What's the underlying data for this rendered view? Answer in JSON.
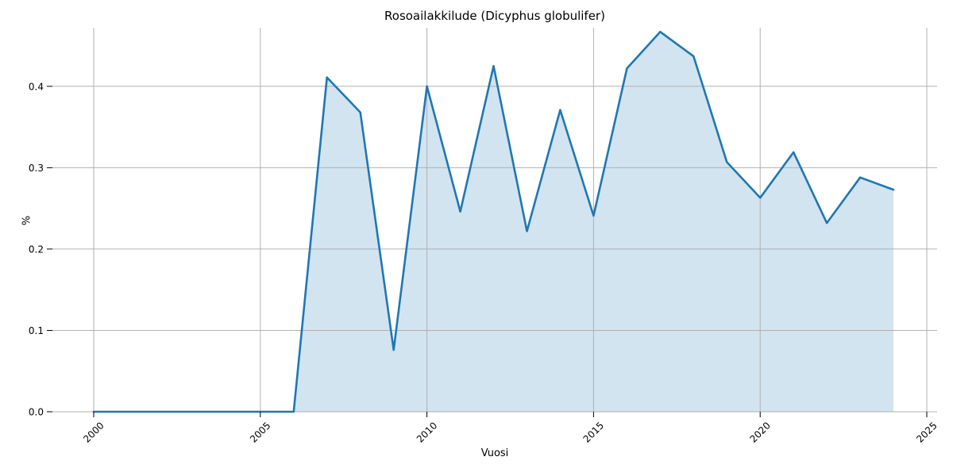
{
  "title": "Rosoailakkilude (Dicyphus globulifer)",
  "chart_data": {
    "type": "area",
    "title": "Rosoailakkilude (Dicyphus globulifer)",
    "xlabel": "Vuosi",
    "ylabel": "%",
    "x": [
      2000,
      2001,
      2002,
      2003,
      2004,
      2005,
      2006,
      2007,
      2008,
      2009,
      2010,
      2011,
      2012,
      2013,
      2014,
      2015,
      2016,
      2017,
      2018,
      2019,
      2020,
      2021,
      2022,
      2023,
      2024
    ],
    "values": [
      0.0,
      0.0,
      0.0,
      0.0,
      0.0,
      0.0,
      0.0,
      0.411,
      0.368,
      0.076,
      0.4,
      0.246,
      0.425,
      0.222,
      0.371,
      0.241,
      0.422,
      0.467,
      0.437,
      0.307,
      0.263,
      0.319,
      0.232,
      0.288,
      0.273
    ],
    "xlim": [
      1998.76,
      2025.31
    ],
    "ylim": [
      0,
      0.472
    ],
    "x_ticks": [
      2000,
      2005,
      2010,
      2015,
      2020,
      2025
    ],
    "x_tick_labels": [
      "2000",
      "2005",
      "2010",
      "2015",
      "2020",
      "2025"
    ],
    "y_ticks": [
      0.0,
      0.1,
      0.2,
      0.3,
      0.4
    ],
    "y_tick_labels": [
      "0.0",
      "0.1",
      "0.2",
      "0.3",
      "0.4"
    ],
    "grid": true,
    "legend": "none",
    "x_tick_rotation_deg": 45,
    "line_color": "#1f77b4",
    "fill_color": "rgba(31,119,180,0.2)",
    "grid_color": "#b0b0b0",
    "tick_color": "#000000"
  }
}
